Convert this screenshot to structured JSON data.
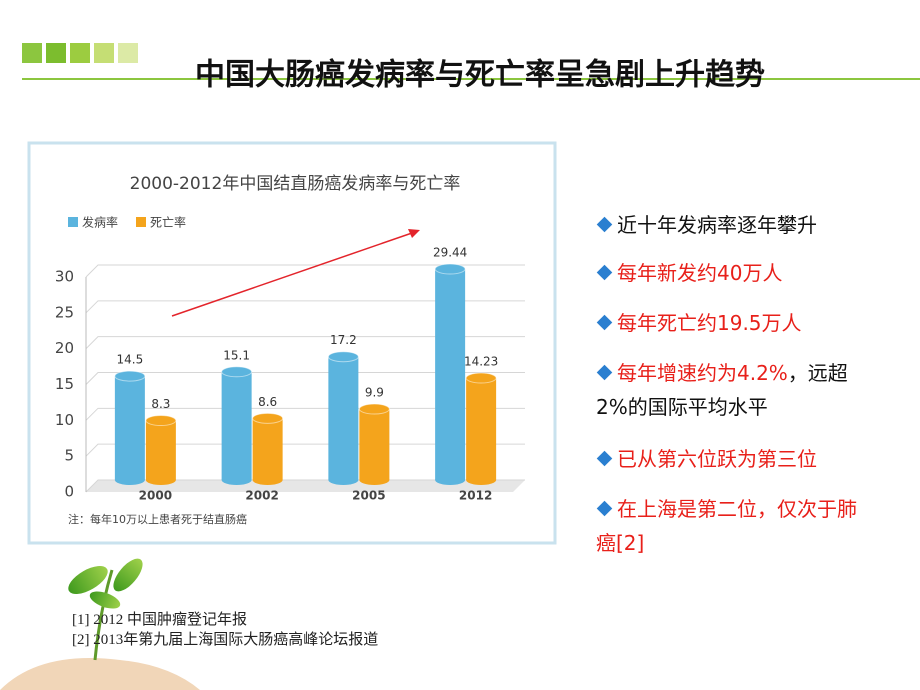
{
  "header": {
    "title": "中国大肠癌发病率与死亡率呈急剧上升趋势"
  },
  "chart_data": {
    "type": "bar",
    "title": "2000-2012年中国结直肠癌发病率与死亡率",
    "categories": [
      "2000",
      "2002",
      "2005",
      "2012"
    ],
    "series": [
      {
        "name": "发病率",
        "color": "#5bb4de",
        "values": [
          14.5,
          15.1,
          17.2,
          29.44
        ]
      },
      {
        "name": "死亡率",
        "color": "#f4a41c",
        "values": [
          8.3,
          8.6,
          9.9,
          14.23
        ]
      }
    ],
    "ylim": [
      0,
      30
    ],
    "yticks": [
      0,
      5,
      10,
      15,
      20,
      25,
      30
    ],
    "grid": true,
    "legend": "top-left",
    "note": "注：每年10万以上患者死于结直肠癌"
  },
  "bullets": [
    {
      "parts": [
        "近十年发病率逐年攀升"
      ]
    },
    {
      "parts": [
        "每年新发约40万人"
      ]
    },
    {
      "parts": [
        "每年死亡约19.5万人"
      ]
    },
    {
      "parts": [
        "每年增速约为4.2%",
        "，远超2%的国际平均水平"
      ]
    },
    {
      "parts": [
        "已从第六位跃为第三位"
      ]
    },
    {
      "parts": [
        "在上海是第二位，仅次于肺癌[2]"
      ]
    }
  ],
  "references": [
    "[1] 2012 中国肿瘤登记年报",
    "[2] 2013年第九届上海国际大肠癌高峰论坛报道"
  ]
}
